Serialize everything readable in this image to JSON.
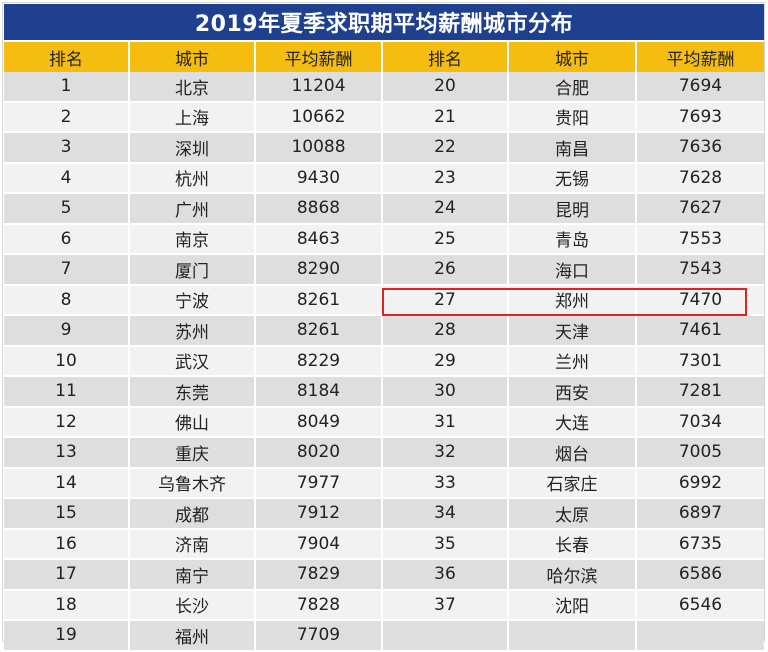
{
  "title": "2019年夏季求职期平均薪酬城市分布",
  "headers": [
    "排名",
    "城市",
    "平均薪酬",
    "排名",
    "城市",
    "平均薪酬"
  ],
  "colors": {
    "title_bg": "#1f3f8f",
    "header_bg": "#f5bd0f",
    "highlight": "#e0231f"
  },
  "rows": [
    [
      "1",
      "北京",
      "11204",
      "20",
      "合肥",
      "7694"
    ],
    [
      "2",
      "上海",
      "10662",
      "21",
      "贵阳",
      "7693"
    ],
    [
      "3",
      "深圳",
      "10088",
      "22",
      "南昌",
      "7636"
    ],
    [
      "4",
      "杭州",
      "9430",
      "23",
      "无锡",
      "7628"
    ],
    [
      "5",
      "广州",
      "8868",
      "24",
      "昆明",
      "7627"
    ],
    [
      "6",
      "南京",
      "8463",
      "25",
      "青岛",
      "7553"
    ],
    [
      "7",
      "厦门",
      "8290",
      "26",
      "海口",
      "7543"
    ],
    [
      "8",
      "宁波",
      "8261",
      "27",
      "郑州",
      "7470"
    ],
    [
      "9",
      "苏州",
      "8261",
      "28",
      "天津",
      "7461"
    ],
    [
      "10",
      "武汉",
      "8229",
      "29",
      "兰州",
      "7301"
    ],
    [
      "11",
      "东莞",
      "8184",
      "30",
      "西安",
      "7281"
    ],
    [
      "12",
      "佛山",
      "8049",
      "31",
      "大连",
      "7034"
    ],
    [
      "13",
      "重庆",
      "8020",
      "32",
      "烟台",
      "7005"
    ],
    [
      "14",
      "乌鲁木齐",
      "7977",
      "33",
      "石家庄",
      "6992"
    ],
    [
      "15",
      "成都",
      "7912",
      "34",
      "太原",
      "6897"
    ],
    [
      "16",
      "济南",
      "7904",
      "35",
      "长春",
      "6735"
    ],
    [
      "17",
      "南宁",
      "7829",
      "36",
      "哈尔滨",
      "6586"
    ],
    [
      "18",
      "长沙",
      "7828",
      "37",
      "沈阳",
      "6546"
    ],
    [
      "19",
      "福州",
      "7709",
      "",
      "",
      ""
    ]
  ]
}
